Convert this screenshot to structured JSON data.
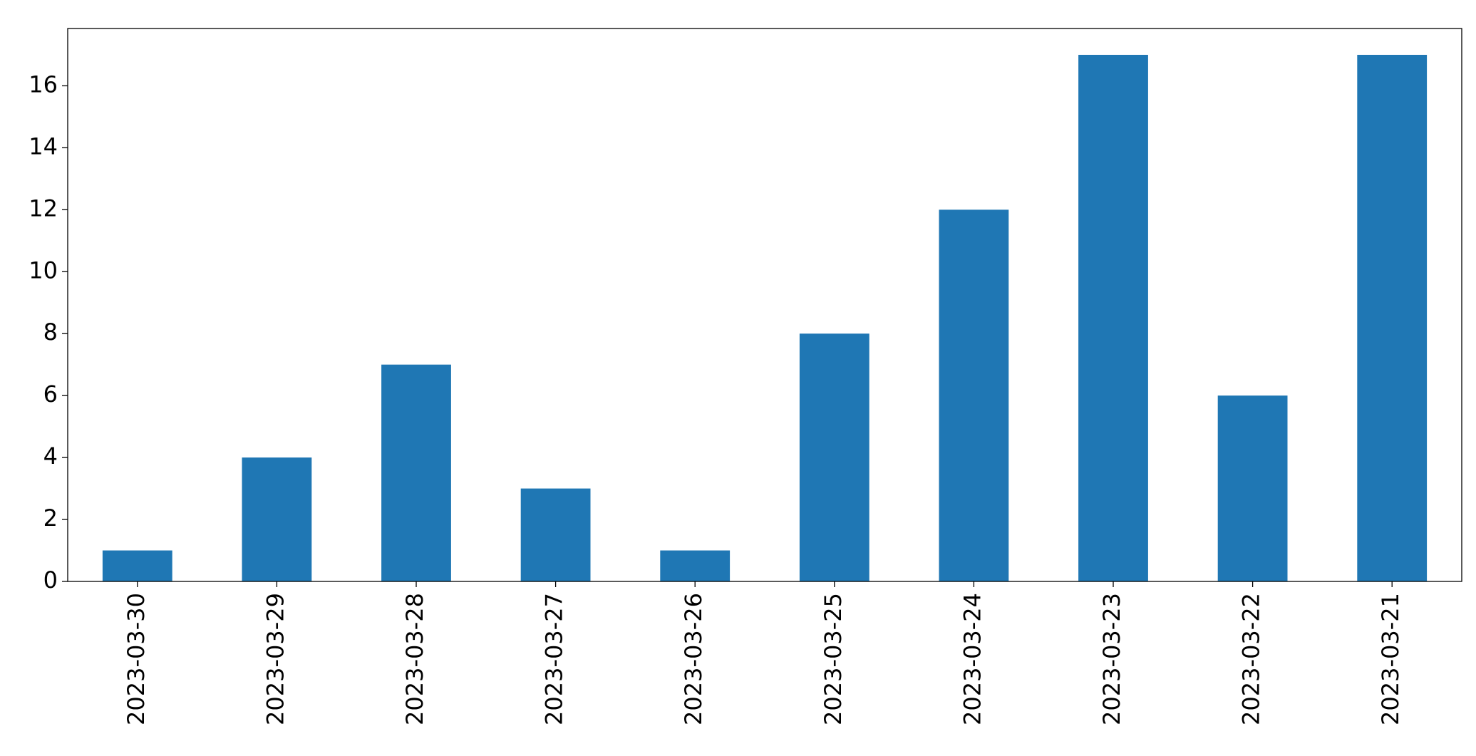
{
  "chart_data": {
    "type": "bar",
    "categories": [
      "2023-03-30",
      "2023-03-29",
      "2023-03-28",
      "2023-03-27",
      "2023-03-26",
      "2023-03-25",
      "2023-03-24",
      "2023-03-23",
      "2023-03-22",
      "2023-03-21"
    ],
    "values": [
      1,
      4,
      7,
      3,
      1,
      8,
      12,
      17,
      6,
      17
    ],
    "color": "#1f77b4",
    "ylim": [
      0,
      17.85
    ],
    "yticks": [
      0,
      2,
      4,
      6,
      8,
      10,
      12,
      14,
      16
    ],
    "grid": false
  }
}
